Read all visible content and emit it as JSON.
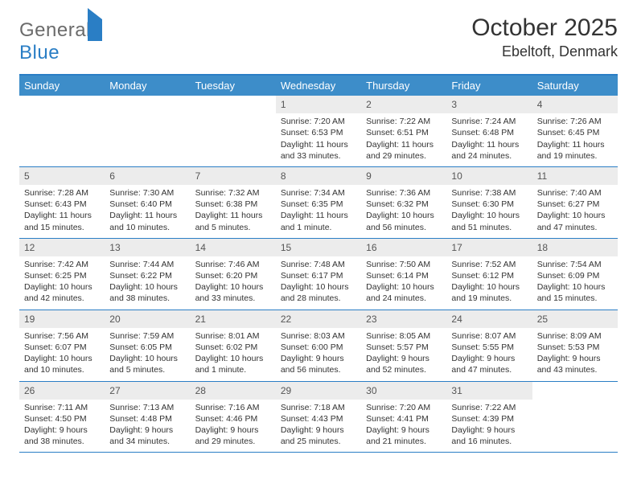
{
  "logo": {
    "textGray": "General",
    "textBlue": "Blue"
  },
  "header": {
    "monthTitle": "October 2025",
    "location": "Ebeltoft, Denmark"
  },
  "colors": {
    "headerBar": "#3d8dc9",
    "borderBlue": "#2a7ec5",
    "dayNumBg": "#ececec",
    "text": "#333333"
  },
  "dayNames": [
    "Sunday",
    "Monday",
    "Tuesday",
    "Wednesday",
    "Thursday",
    "Friday",
    "Saturday"
  ],
  "weeks": [
    [
      {
        "empty": true
      },
      {
        "empty": true
      },
      {
        "empty": true
      },
      {
        "day": "1",
        "sunrise": "Sunrise: 7:20 AM",
        "sunset": "Sunset: 6:53 PM",
        "daylight": "Daylight: 11 hours and 33 minutes."
      },
      {
        "day": "2",
        "sunrise": "Sunrise: 7:22 AM",
        "sunset": "Sunset: 6:51 PM",
        "daylight": "Daylight: 11 hours and 29 minutes."
      },
      {
        "day": "3",
        "sunrise": "Sunrise: 7:24 AM",
        "sunset": "Sunset: 6:48 PM",
        "daylight": "Daylight: 11 hours and 24 minutes."
      },
      {
        "day": "4",
        "sunrise": "Sunrise: 7:26 AM",
        "sunset": "Sunset: 6:45 PM",
        "daylight": "Daylight: 11 hours and 19 minutes."
      }
    ],
    [
      {
        "day": "5",
        "sunrise": "Sunrise: 7:28 AM",
        "sunset": "Sunset: 6:43 PM",
        "daylight": "Daylight: 11 hours and 15 minutes."
      },
      {
        "day": "6",
        "sunrise": "Sunrise: 7:30 AM",
        "sunset": "Sunset: 6:40 PM",
        "daylight": "Daylight: 11 hours and 10 minutes."
      },
      {
        "day": "7",
        "sunrise": "Sunrise: 7:32 AM",
        "sunset": "Sunset: 6:38 PM",
        "daylight": "Daylight: 11 hours and 5 minutes."
      },
      {
        "day": "8",
        "sunrise": "Sunrise: 7:34 AM",
        "sunset": "Sunset: 6:35 PM",
        "daylight": "Daylight: 11 hours and 1 minute."
      },
      {
        "day": "9",
        "sunrise": "Sunrise: 7:36 AM",
        "sunset": "Sunset: 6:32 PM",
        "daylight": "Daylight: 10 hours and 56 minutes."
      },
      {
        "day": "10",
        "sunrise": "Sunrise: 7:38 AM",
        "sunset": "Sunset: 6:30 PM",
        "daylight": "Daylight: 10 hours and 51 minutes."
      },
      {
        "day": "11",
        "sunrise": "Sunrise: 7:40 AM",
        "sunset": "Sunset: 6:27 PM",
        "daylight": "Daylight: 10 hours and 47 minutes."
      }
    ],
    [
      {
        "day": "12",
        "sunrise": "Sunrise: 7:42 AM",
        "sunset": "Sunset: 6:25 PM",
        "daylight": "Daylight: 10 hours and 42 minutes."
      },
      {
        "day": "13",
        "sunrise": "Sunrise: 7:44 AM",
        "sunset": "Sunset: 6:22 PM",
        "daylight": "Daylight: 10 hours and 38 minutes."
      },
      {
        "day": "14",
        "sunrise": "Sunrise: 7:46 AM",
        "sunset": "Sunset: 6:20 PM",
        "daylight": "Daylight: 10 hours and 33 minutes."
      },
      {
        "day": "15",
        "sunrise": "Sunrise: 7:48 AM",
        "sunset": "Sunset: 6:17 PM",
        "daylight": "Daylight: 10 hours and 28 minutes."
      },
      {
        "day": "16",
        "sunrise": "Sunrise: 7:50 AM",
        "sunset": "Sunset: 6:14 PM",
        "daylight": "Daylight: 10 hours and 24 minutes."
      },
      {
        "day": "17",
        "sunrise": "Sunrise: 7:52 AM",
        "sunset": "Sunset: 6:12 PM",
        "daylight": "Daylight: 10 hours and 19 minutes."
      },
      {
        "day": "18",
        "sunrise": "Sunrise: 7:54 AM",
        "sunset": "Sunset: 6:09 PM",
        "daylight": "Daylight: 10 hours and 15 minutes."
      }
    ],
    [
      {
        "day": "19",
        "sunrise": "Sunrise: 7:56 AM",
        "sunset": "Sunset: 6:07 PM",
        "daylight": "Daylight: 10 hours and 10 minutes."
      },
      {
        "day": "20",
        "sunrise": "Sunrise: 7:59 AM",
        "sunset": "Sunset: 6:05 PM",
        "daylight": "Daylight: 10 hours and 5 minutes."
      },
      {
        "day": "21",
        "sunrise": "Sunrise: 8:01 AM",
        "sunset": "Sunset: 6:02 PM",
        "daylight": "Daylight: 10 hours and 1 minute."
      },
      {
        "day": "22",
        "sunrise": "Sunrise: 8:03 AM",
        "sunset": "Sunset: 6:00 PM",
        "daylight": "Daylight: 9 hours and 56 minutes."
      },
      {
        "day": "23",
        "sunrise": "Sunrise: 8:05 AM",
        "sunset": "Sunset: 5:57 PM",
        "daylight": "Daylight: 9 hours and 52 minutes."
      },
      {
        "day": "24",
        "sunrise": "Sunrise: 8:07 AM",
        "sunset": "Sunset: 5:55 PM",
        "daylight": "Daylight: 9 hours and 47 minutes."
      },
      {
        "day": "25",
        "sunrise": "Sunrise: 8:09 AM",
        "sunset": "Sunset: 5:53 PM",
        "daylight": "Daylight: 9 hours and 43 minutes."
      }
    ],
    [
      {
        "day": "26",
        "sunrise": "Sunrise: 7:11 AM",
        "sunset": "Sunset: 4:50 PM",
        "daylight": "Daylight: 9 hours and 38 minutes."
      },
      {
        "day": "27",
        "sunrise": "Sunrise: 7:13 AM",
        "sunset": "Sunset: 4:48 PM",
        "daylight": "Daylight: 9 hours and 34 minutes."
      },
      {
        "day": "28",
        "sunrise": "Sunrise: 7:16 AM",
        "sunset": "Sunset: 4:46 PM",
        "daylight": "Daylight: 9 hours and 29 minutes."
      },
      {
        "day": "29",
        "sunrise": "Sunrise: 7:18 AM",
        "sunset": "Sunset: 4:43 PM",
        "daylight": "Daylight: 9 hours and 25 minutes."
      },
      {
        "day": "30",
        "sunrise": "Sunrise: 7:20 AM",
        "sunset": "Sunset: 4:41 PM",
        "daylight": "Daylight: 9 hours and 21 minutes."
      },
      {
        "day": "31",
        "sunrise": "Sunrise: 7:22 AM",
        "sunset": "Sunset: 4:39 PM",
        "daylight": "Daylight: 9 hours and 16 minutes."
      },
      {
        "empty": true
      }
    ]
  ]
}
